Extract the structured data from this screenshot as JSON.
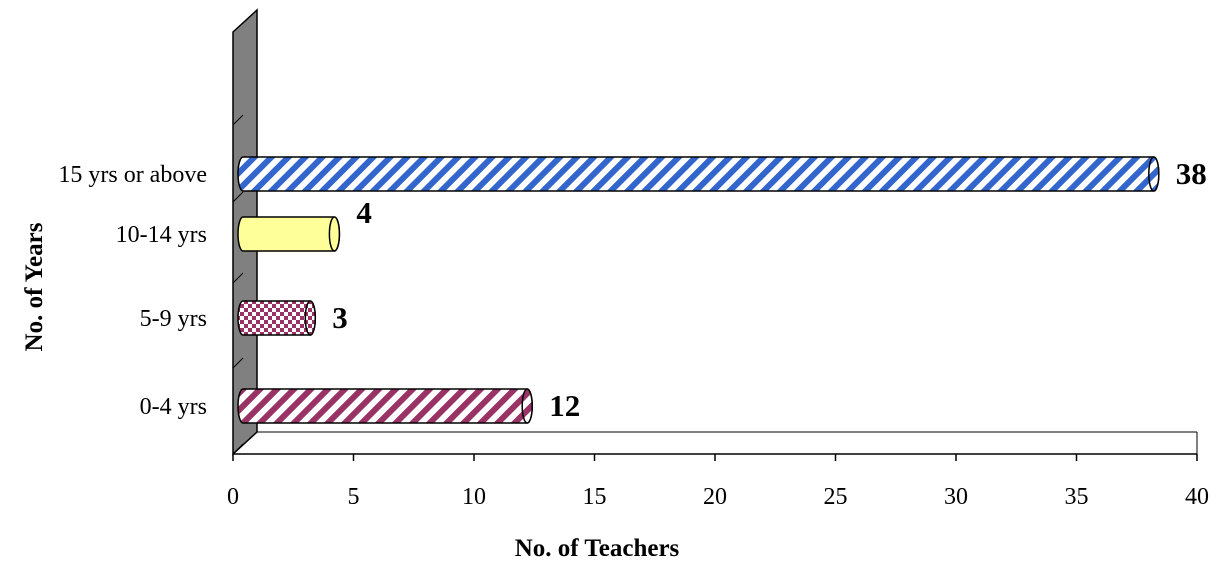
{
  "chart_data": {
    "type": "bar",
    "orientation": "horizontal",
    "title": "",
    "xlabel": "No. of Teachers",
    "ylabel": "No. of Years",
    "xlim": [
      0,
      40
    ],
    "xticks": [
      0,
      5,
      10,
      15,
      20,
      25,
      30,
      35,
      40
    ],
    "categories": [
      "0-4 yrs",
      "5-9 yrs",
      "10-14 yrs",
      "15 yrs or above"
    ],
    "values": [
      12,
      3,
      4,
      38
    ],
    "data_labels": [
      "12",
      "3",
      "4",
      "38"
    ],
    "grid": false,
    "legend": "none",
    "bar_styles": [
      {
        "pattern": "diagonal-stripes",
        "color": "#993366",
        "background": "#ffffff"
      },
      {
        "pattern": "checker",
        "color": "#993366",
        "background": "#ffffff"
      },
      {
        "pattern": "solid",
        "color": "#ffff99",
        "background": "#ffff99"
      },
      {
        "pattern": "diagonal-stripes",
        "color": "#3366cc",
        "background": "#ffffff"
      }
    ],
    "wall_color": "#808080"
  }
}
